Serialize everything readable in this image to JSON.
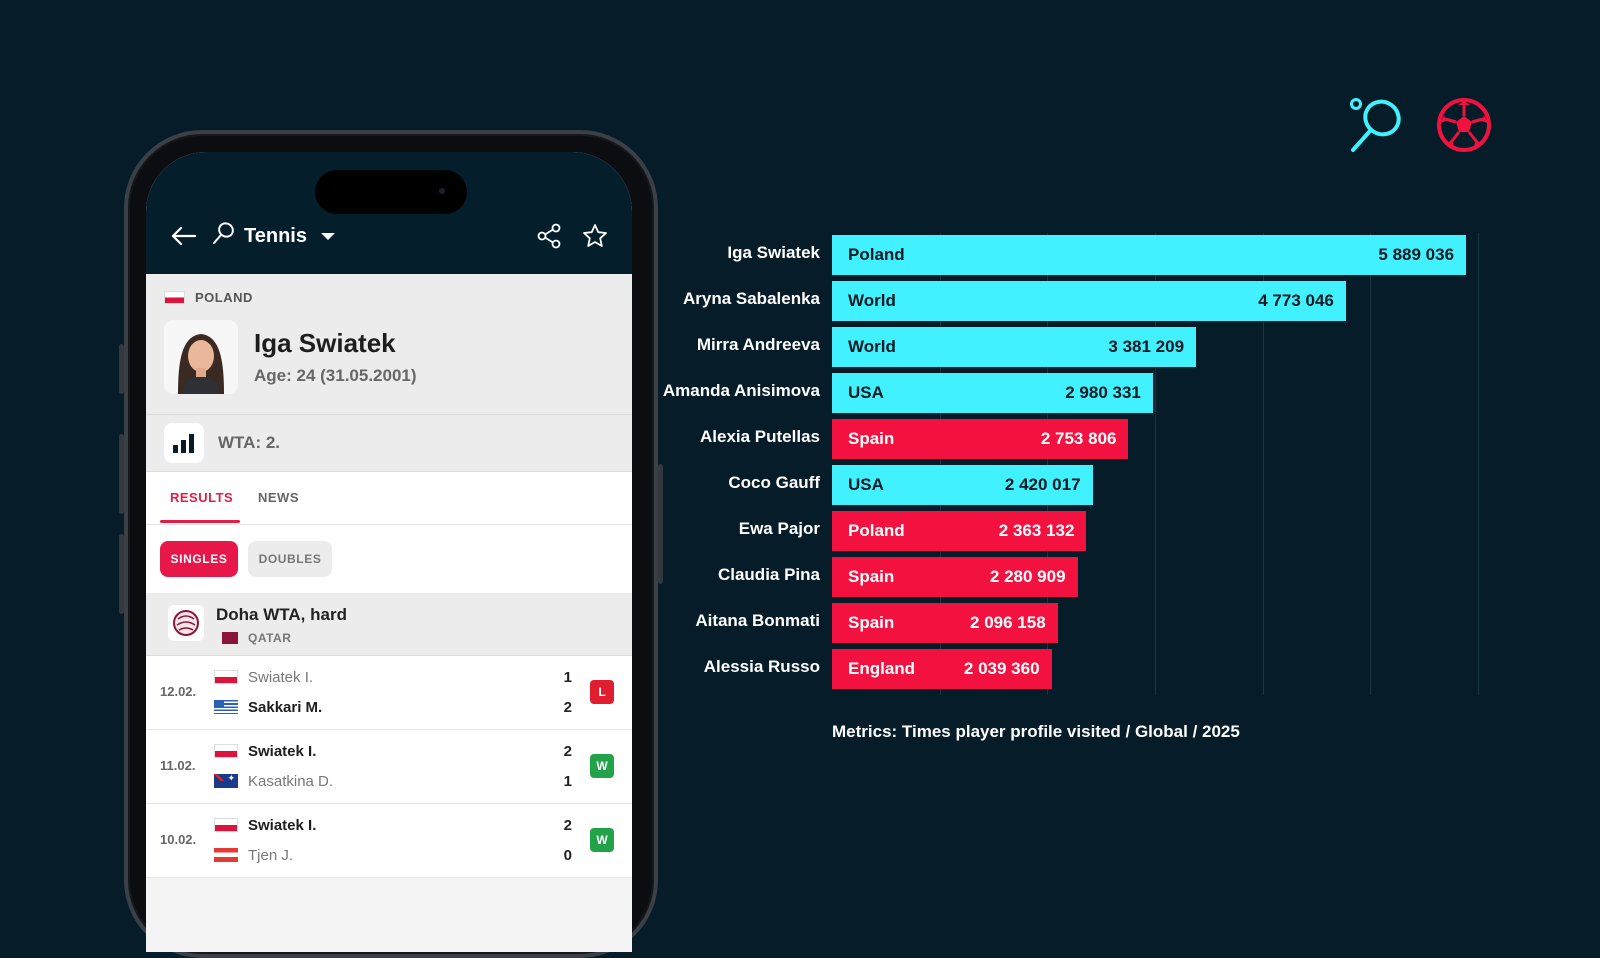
{
  "header_icons": [
    "tennis-racket-icon",
    "football-icon"
  ],
  "colors": {
    "background": "#061d29",
    "tennis": "#41f1ff",
    "football": "#f3123f",
    "accent": "#e8174a"
  },
  "app": {
    "sport": "Tennis",
    "country": "POLAND",
    "player_name": "Iga Swiatek",
    "player_age": "Age: 24 (31.05.2001)",
    "ranking": "WTA: 2.",
    "tabs": [
      "RESULTS",
      "NEWS"
    ],
    "filters": [
      "SINGLES",
      "DOUBLES"
    ],
    "tournament": {
      "name": "Doha WTA, hard",
      "country": "QATAR"
    },
    "matches": [
      {
        "date": "12.02.",
        "p1": "Swiatek I.",
        "s1": "1",
        "p2": "Sakkari M.",
        "s2": "2",
        "result": "L"
      },
      {
        "date": "11.02.",
        "p1": "Swiatek I.",
        "s1": "2",
        "p2": "Kasatkina D.",
        "s2": "1",
        "result": "W"
      },
      {
        "date": "10.02.",
        "p1": "Swiatek I.",
        "s1": "2",
        "p2": "Tjen J.",
        "s2": "0",
        "result": "W"
      }
    ]
  },
  "chart_data": {
    "type": "bar",
    "orientation": "horizontal",
    "categories": [
      "Iga Swiatek",
      "Aryna Sabalenka",
      "Mirra Andreeva",
      "Amanda Anisimova",
      "Alexia Putellas",
      "Coco Gauff",
      "Ewa Pajor",
      "Claudia Pina",
      "Aitana Bonmati",
      "Alessia Russo"
    ],
    "bar_labels": [
      "Poland",
      "World",
      "World",
      "USA",
      "Spain",
      "USA",
      "Poland",
      "Spain",
      "Spain",
      "England"
    ],
    "values": [
      5889036,
      4773046,
      3381209,
      2980331,
      2753806,
      2420017,
      2363132,
      2280909,
      2096158,
      2039360
    ],
    "value_labels": [
      "5 889 036",
      "4 773 046",
      "3 381 209",
      "2 980 331",
      "2 753 806",
      "2 420 017",
      "2 363 132",
      "2 280 909",
      "2 096 158",
      "2 039 360"
    ],
    "sport": [
      "tennis",
      "tennis",
      "tennis",
      "tennis",
      "football",
      "tennis",
      "football",
      "football",
      "football",
      "football"
    ],
    "xlim": [
      0,
      6000000
    ],
    "grid": true,
    "footnote": "Metrics: Times player profile visited / Global / 2025"
  }
}
